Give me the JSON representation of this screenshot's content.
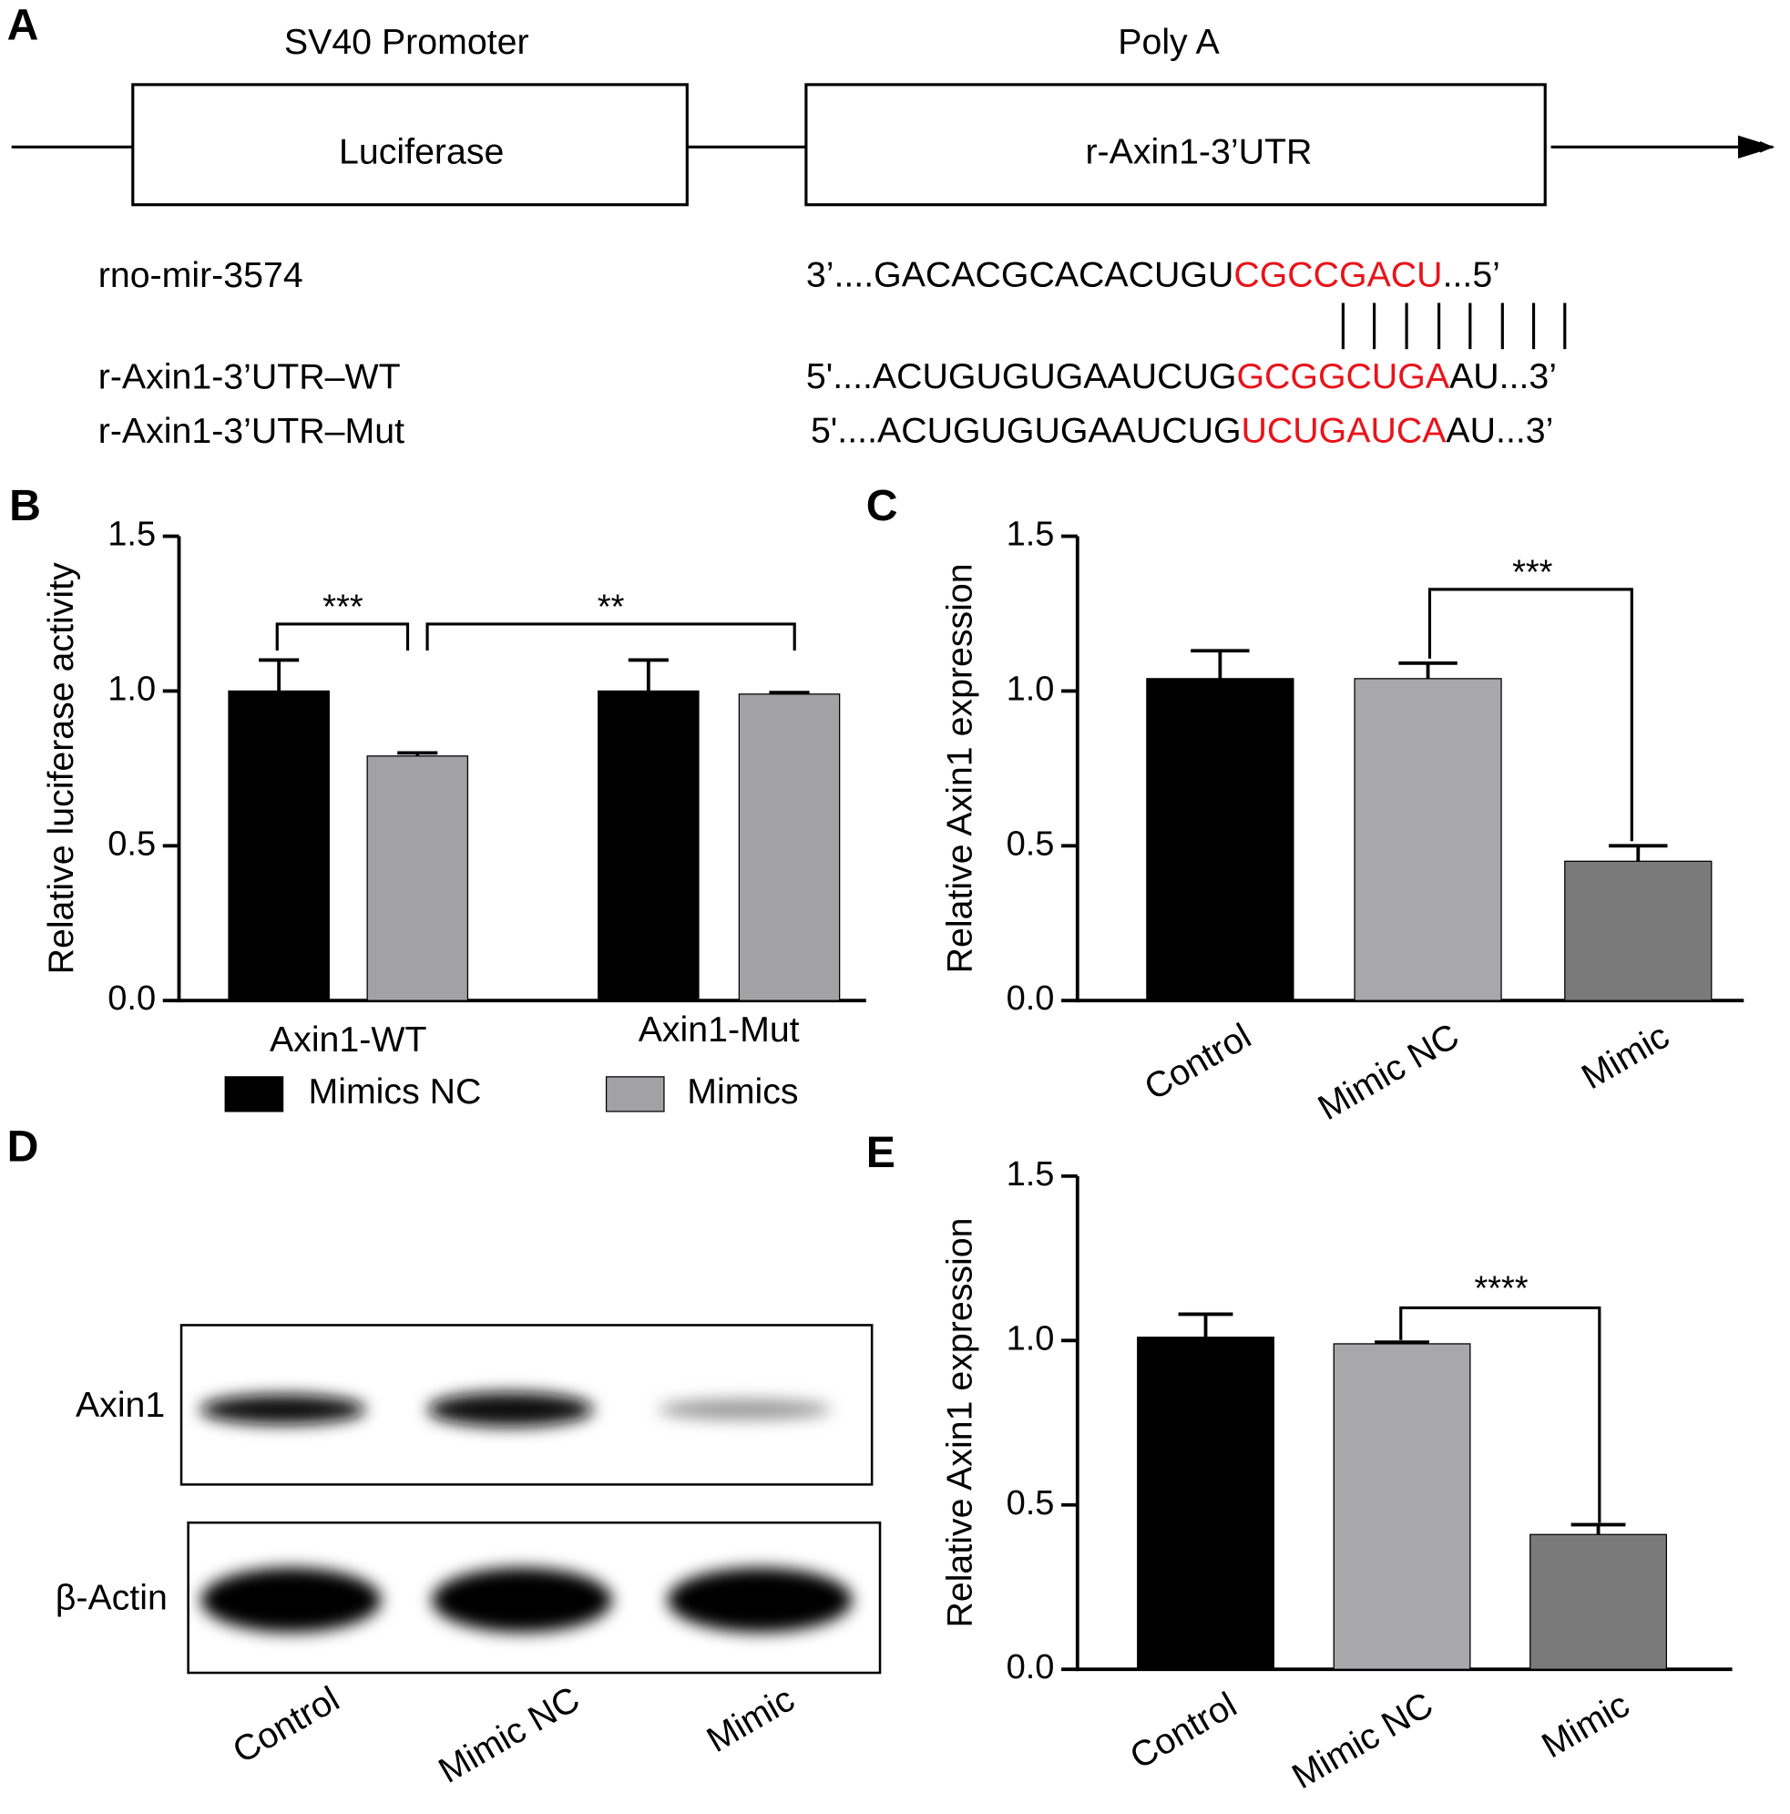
{
  "diagram": {
    "panel": "A",
    "promoter": "SV40 Promoter",
    "polya": "Poly A",
    "gene": "Luciferase",
    "utr": "r-Axin1-3’UTR",
    "rows": [
      {
        "label": "rno-mir-3574",
        "sequence": [
          "3’....GACACGCACACUGU",
          "CGCCGACU",
          "...5’"
        ]
      },
      {
        "label": "r-Axin1-3’UTR–WT",
        "sequence": [
          "5'....ACUGUGUGAAUCUG",
          "GCGGCUGA",
          "AU...3’"
        ]
      },
      {
        "label": "r-Axin1-3’UTR–Mut",
        "sequence": [
          "5'....ACUGUGUGAAUCUG",
          "UCUGAUCA",
          "AU...3’"
        ]
      }
    ]
  },
  "blot": {
    "panel": "D",
    "rows": [
      "Axin1",
      "β-Actin"
    ],
    "lanes": [
      "Control",
      "Mimic NC",
      "Mimic"
    ]
  },
  "chart_data": [
    {
      "panel": "B",
      "type": "bar",
      "ylabel": "Relative luciferase activity",
      "categories": [
        "Axin1-WT",
        "Axin1-Mut"
      ],
      "series": [
        {
          "name": "Mimics NC",
          "color": "#000000",
          "values": [
            1.0,
            1.0
          ],
          "errors": [
            0.1,
            0.1
          ]
        },
        {
          "name": "Mimics",
          "color": "#a2a2a4",
          "values": [
            0.79,
            0.99
          ],
          "errors": [
            0.01,
            0.005
          ]
        }
      ],
      "ylim": [
        0,
        1.5
      ],
      "yticks": [
        {
          "value": 0,
          "label": "0.0"
        },
        {
          "value": 0.5,
          "label": "0.5"
        },
        {
          "value": 1,
          "label": "1.0"
        },
        {
          "value": 1.5,
          "label": "1.5"
        }
      ],
      "annotations": [
        "***",
        "**"
      ]
    },
    {
      "panel": "C",
      "type": "bar",
      "ylabel": "Relative Axin1 expression",
      "categories": [
        "Control",
        "Mimic NC",
        "Mimic"
      ],
      "values": [
        1.04,
        1.04,
        0.45
      ],
      "errors": [
        0.09,
        0.05,
        0.05
      ],
      "colors": [
        "#000000",
        "#a8a8aa",
        "#7a7a7a"
      ],
      "ylim": [
        0,
        1.5
      ],
      "yticks": [
        {
          "value": 0,
          "label": "0.0"
        },
        {
          "value": 0.5,
          "label": "0.5"
        },
        {
          "value": 1,
          "label": "1.0"
        },
        {
          "value": 1.5,
          "label": "1.5"
        }
      ],
      "annotations": [
        "***"
      ]
    },
    {
      "panel": "E",
      "type": "bar",
      "ylabel": "Relative Axin1 expression",
      "categories": [
        "Control",
        "Mimic NC",
        "Mimic"
      ],
      "values": [
        1.01,
        0.99,
        0.41
      ],
      "errors": [
        0.07,
        0.005,
        0.03
      ],
      "colors": [
        "#000000",
        "#a8a8aa",
        "#7a7a7a"
      ],
      "ylim": [
        0,
        1.5
      ],
      "yticks": [
        {
          "value": 0,
          "label": "0.0"
        },
        {
          "value": 0.5,
          "label": "0.5"
        },
        {
          "value": 1,
          "label": "1.0"
        },
        {
          "value": 1.5,
          "label": "1.5"
        }
      ],
      "annotations": [
        "****"
      ]
    }
  ]
}
